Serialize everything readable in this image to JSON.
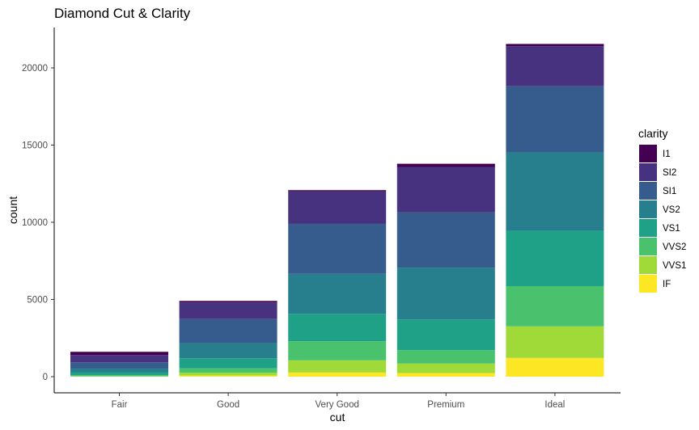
{
  "chart_data": {
    "type": "bar",
    "stacked": true,
    "title": "Diamond Cut & Clarity",
    "xlabel": "cut",
    "ylabel": "count",
    "ylim": [
      0,
      22500
    ],
    "yticks": [
      0,
      5000,
      10000,
      15000,
      20000
    ],
    "grid": false,
    "legend": {
      "title": "clarity",
      "position": "right"
    },
    "categories": [
      "Fair",
      "Good",
      "Very Good",
      "Premium",
      "Ideal"
    ],
    "series": [
      {
        "name": "IF",
        "color": "#FDE725",
        "values": [
          9,
          71,
          268,
          230,
          1212
        ]
      },
      {
        "name": "VVS1",
        "color": "#A0DA39",
        "values": [
          17,
          186,
          789,
          616,
          2047
        ]
      },
      {
        "name": "VVS2",
        "color": "#4AC16D",
        "values": [
          69,
          286,
          1235,
          870,
          2606
        ]
      },
      {
        "name": "VS1",
        "color": "#1FA187",
        "values": [
          170,
          648,
          1775,
          1989,
          3589
        ]
      },
      {
        "name": "VS2",
        "color": "#277F8E",
        "values": [
          261,
          978,
          2591,
          3357,
          5071
        ]
      },
      {
        "name": "SI1",
        "color": "#365C8D",
        "values": [
          408,
          1560,
          3240,
          3575,
          4282
        ]
      },
      {
        "name": "SI2",
        "color": "#46327E",
        "values": [
          466,
          1081,
          2100,
          2949,
          2598
        ]
      },
      {
        "name": "I1",
        "color": "#440154",
        "values": [
          210,
          96,
          84,
          205,
          146
        ]
      }
    ]
  }
}
